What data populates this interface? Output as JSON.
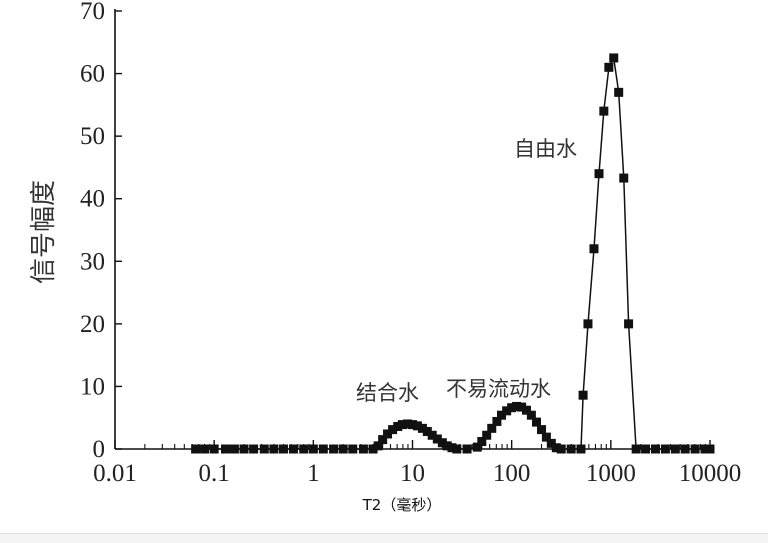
{
  "chart_data": {
    "type": "scatter",
    "title": "",
    "xlabel": "T2（毫秒）",
    "ylabel": "信号幅度",
    "x_scale": "log",
    "xlim": [
      0.01,
      10000
    ],
    "ylim": [
      0,
      70
    ],
    "x_ticks": [
      "0.01",
      "0.1",
      "1",
      "10",
      "100",
      "1000",
      "10000"
    ],
    "y_ticks": [
      "0",
      "10",
      "20",
      "30",
      "40",
      "50",
      "60",
      "70"
    ],
    "grid": false,
    "marker": "square",
    "color": "#111111",
    "annotations": [
      {
        "text": "自由水",
        "x": 700,
        "y": 47
      },
      {
        "text": "结合水",
        "x": 4,
        "y": 8
      },
      {
        "text": "不易流动水",
        "x": 60,
        "y": 8.5
      }
    ],
    "series": [
      {
        "x": [
          0.065,
          0.08,
          0.1,
          0.13,
          0.16,
          0.2,
          0.25,
          0.32,
          0.4,
          0.5,
          0.63,
          0.8,
          1,
          1.26,
          1.6,
          2,
          2.5,
          3.2,
          4,
          4.5,
          5.0,
          5.6,
          6.3,
          7.1,
          7.9,
          8.9,
          10,
          11.2,
          12.6,
          14.1,
          15.8,
          17.8,
          20,
          22.4,
          25,
          28,
          35.5,
          45,
          50,
          56,
          63,
          71,
          79,
          89,
          100,
          112,
          126,
          141,
          158,
          178,
          200,
          224,
          251,
          282,
          316,
          398,
          500,
          525,
          588,
          676,
          760,
          850,
          955,
          1070,
          1200,
          1350,
          1510,
          1800,
          2240,
          2820,
          3550,
          4470,
          5620,
          7080,
          8910,
          10000
        ],
        "y": [
          0,
          0,
          0,
          0,
          0,
          0,
          0,
          0,
          0,
          0,
          0,
          0,
          0,
          0,
          0,
          0,
          0,
          0,
          0,
          0.5,
          1.5,
          2.4,
          3.1,
          3.6,
          3.9,
          4.0,
          3.9,
          3.7,
          3.3,
          2.8,
          2.2,
          1.6,
          1.0,
          0.5,
          0.2,
          0,
          0,
          0.3,
          1.2,
          2.2,
          3.3,
          4.4,
          5.4,
          6.1,
          6.6,
          6.8,
          6.7,
          6.2,
          5.4,
          4.3,
          3.1,
          1.9,
          0.9,
          0.2,
          0,
          0,
          0,
          8.6,
          20,
          32,
          44,
          54,
          61,
          62.5,
          57,
          43.3,
          20,
          0,
          0,
          0,
          0,
          0,
          0,
          0,
          0,
          0
        ]
      }
    ]
  }
}
